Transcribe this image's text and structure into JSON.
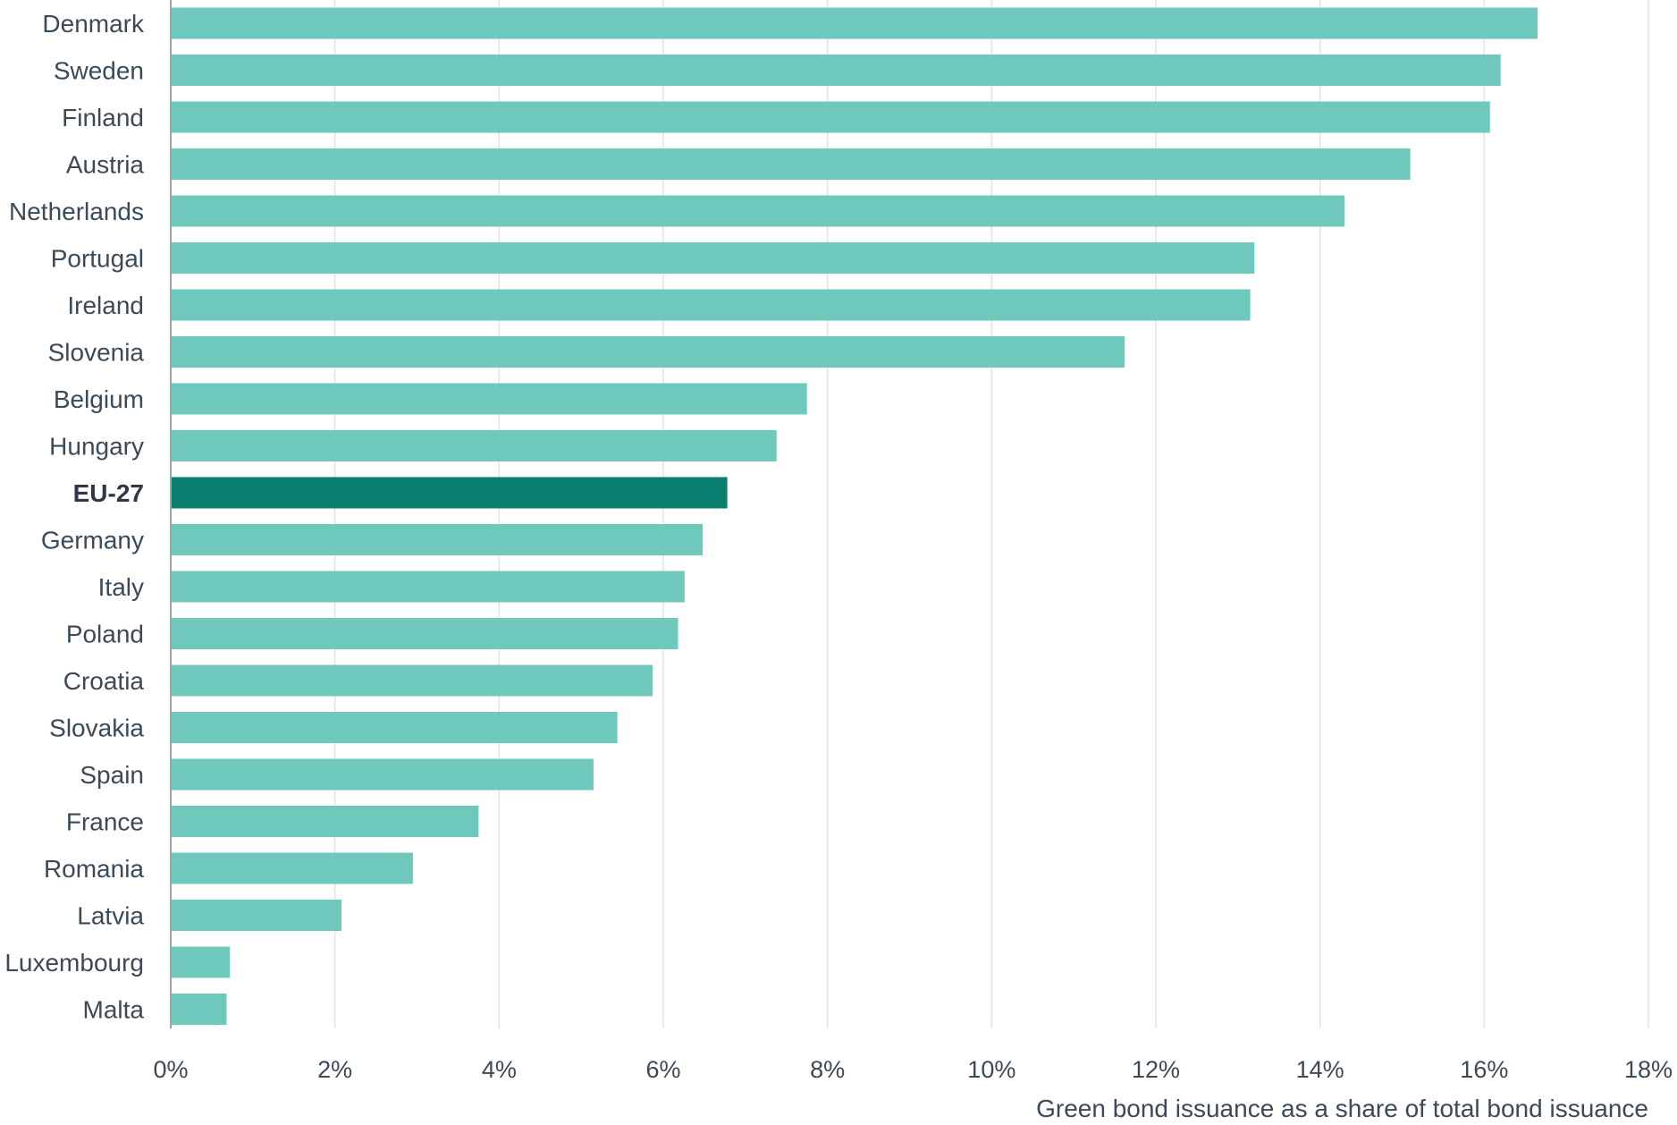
{
  "chart_data": {
    "type": "bar",
    "orientation": "horizontal",
    "categories": [
      "Denmark",
      "Sweden",
      "Finland",
      "Austria",
      "Netherlands",
      "Portugal",
      "Ireland",
      "Slovenia",
      "Belgium",
      "Hungary",
      "EU-27",
      "Germany",
      "Italy",
      "Poland",
      "Croatia",
      "Slovakia",
      "Spain",
      "France",
      "Romania",
      "Latvia",
      "Luxembourg",
      "Malta"
    ],
    "values": [
      16.65,
      16.2,
      16.07,
      15.1,
      14.3,
      13.2,
      13.15,
      11.62,
      7.75,
      7.38,
      6.78,
      6.48,
      6.26,
      6.18,
      5.87,
      5.44,
      5.15,
      3.75,
      2.95,
      2.08,
      0.72,
      0.68
    ],
    "highlight": "EU-27",
    "xlabel": "Green bond issuance as a share of total bond issuance",
    "xlim": [
      0,
      18
    ],
    "xticks": [
      0,
      2,
      4,
      6,
      8,
      10,
      12,
      14,
      16,
      18
    ],
    "tick_format": "%",
    "grid": "vertical",
    "colors": {
      "bar": "#6fc8bc",
      "highlight": "#0a7f6f",
      "grid": "#e3e3e3",
      "axis": "#9aa3aa"
    }
  }
}
